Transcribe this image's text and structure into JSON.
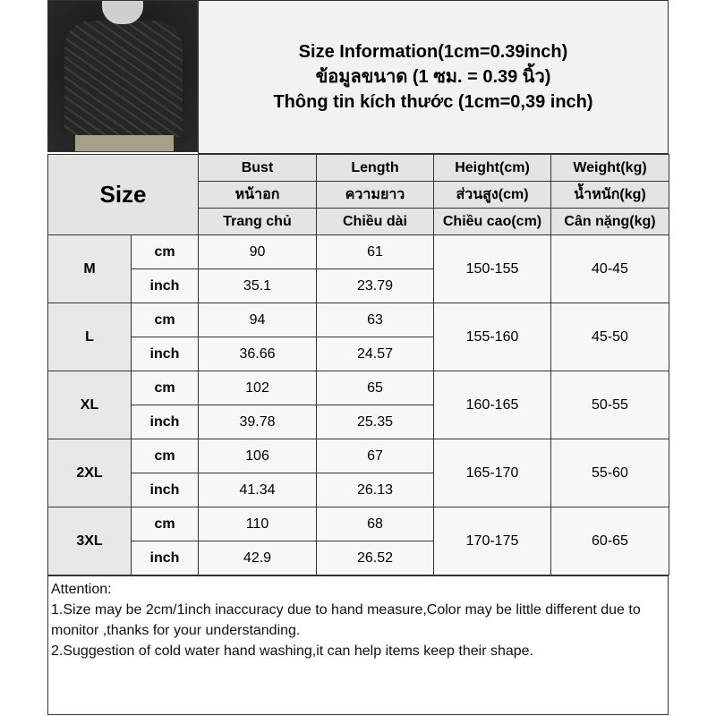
{
  "title": {
    "line1": "Size Information(1cm=0.39inch)",
    "line2": "ข้อมูลขนาด (1 ซม. = 0.39 นิ้ว)",
    "line3": "Thông tin kích thước (1cm=0,39 inch)"
  },
  "header": {
    "size": "Size",
    "columns": [
      {
        "en": "Bust",
        "th": "หน้าอก",
        "vi": "Trang chủ"
      },
      {
        "en": "Length",
        "th": "ความยาว",
        "vi": "Chiều dài"
      },
      {
        "en": "Height(cm)",
        "th": "ส่วนสูง(cm)",
        "vi": "Chiều cao(cm)"
      },
      {
        "en": "Weight(kg)",
        "th": "น้ำหนัก(kg)",
        "vi": "Cân nặng(kg)"
      }
    ]
  },
  "rows": [
    {
      "size": "M",
      "cm": "cm",
      "inch": "inch",
      "bust_cm": "90",
      "length_cm": "61",
      "bust_in": "35.1",
      "length_in": "23.79",
      "height": "150-155",
      "weight": "40-45"
    },
    {
      "size": "L",
      "cm": "cm",
      "inch": "inch",
      "bust_cm": "94",
      "length_cm": "63",
      "bust_in": "36.66",
      "length_in": "24.57",
      "height": "155-160",
      "weight": "45-50"
    },
    {
      "size": "XL",
      "cm": "cm",
      "inch": "inch",
      "bust_cm": "102",
      "length_cm": "65",
      "bust_in": "39.78",
      "length_in": "25.35",
      "height": "160-165",
      "weight": "50-55"
    },
    {
      "size": "2XL",
      "cm": "cm",
      "inch": "inch",
      "bust_cm": "106",
      "length_cm": "67",
      "bust_in": "41.34",
      "length_in": "26.13",
      "height": "165-170",
      "weight": "55-60"
    },
    {
      "size": "3XL",
      "cm": "cm",
      "inch": "inch",
      "bust_cm": "110",
      "length_cm": "68",
      "bust_in": "42.9",
      "length_in": "26.52",
      "height": "170-175",
      "weight": "60-65"
    }
  ],
  "notes": {
    "heading": "Attention:",
    "line1": "1.Size may be 2cm/1inch inaccuracy due to hand measure,Color may be little different due to monitor ,thanks for your understanding.",
    "line2": "2.Suggestion of cold water hand washing,it can help items keep their shape."
  }
}
